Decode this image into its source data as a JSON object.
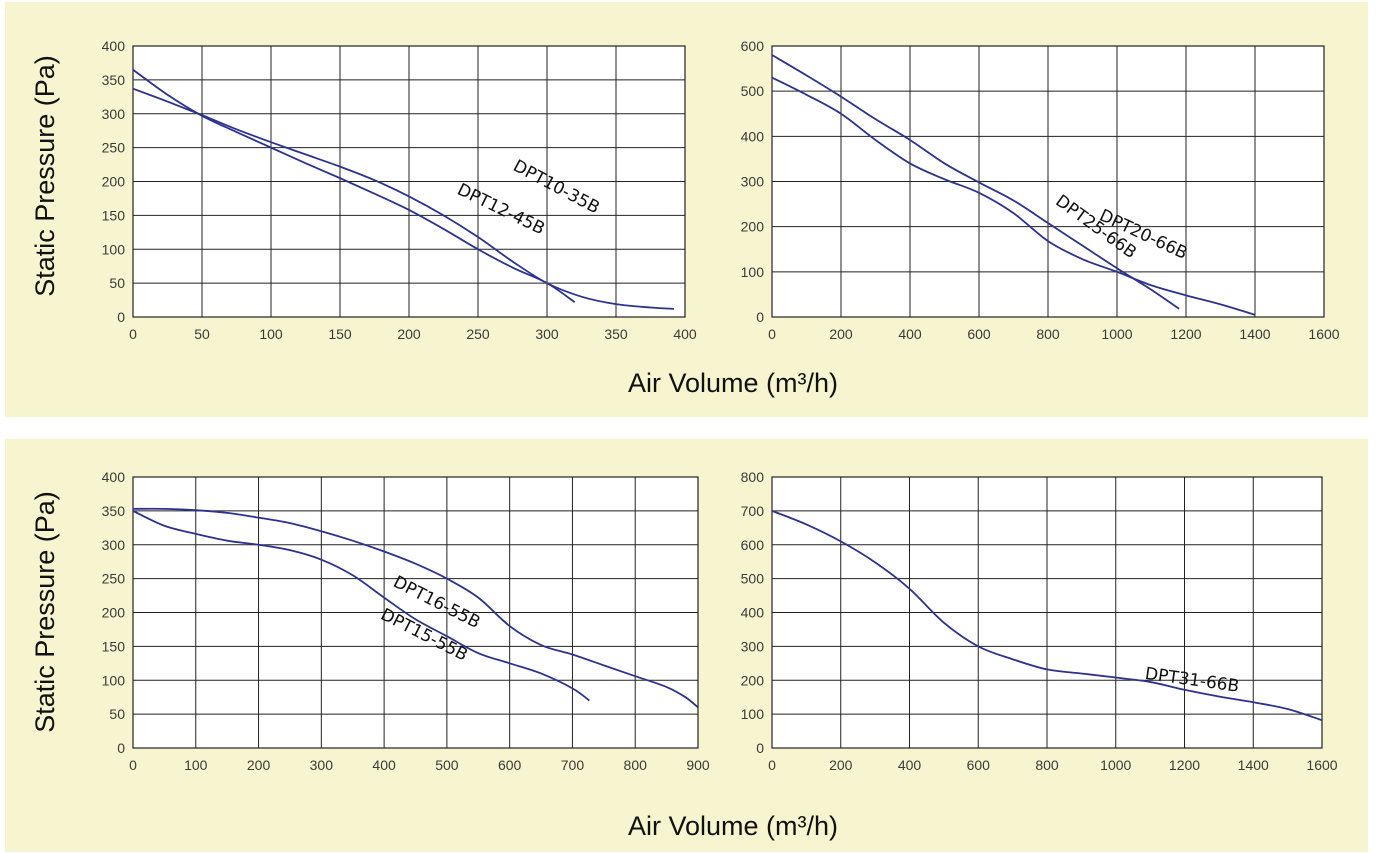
{
  "colors": {
    "background": "#f6f5cf",
    "plot_bg": "#ffffff",
    "grid": "#222222",
    "curve": "#2b3290"
  },
  "panels": [
    {
      "ylabel": "Static Pressure (Pa)",
      "xlabel": "Air Volume (m³/h)"
    },
    {
      "ylabel": "Static Pressure (Pa)",
      "xlabel": "Air Volume (m³/h)"
    }
  ],
  "chart_data": [
    {
      "type": "line",
      "xlim": [
        0,
        400
      ],
      "ylim": [
        0,
        400
      ],
      "xticks": [
        0,
        50,
        100,
        150,
        200,
        250,
        300,
        350,
        400
      ],
      "yticks": [
        0,
        50,
        100,
        150,
        200,
        250,
        300,
        350,
        400
      ],
      "grid": true,
      "series": [
        {
          "name": "DPT10-35B",
          "x": [
            0,
            25,
            50,
            75,
            100,
            125,
            150,
            175,
            200,
            225,
            250,
            275,
            300,
            325,
            350,
            375,
            392
          ],
          "y": [
            337,
            318,
            298,
            277,
            258,
            240,
            222,
            202,
            178,
            150,
            118,
            82,
            50,
            30,
            19,
            14,
            12
          ]
        },
        {
          "name": "DPT12-45B",
          "x": [
            0,
            25,
            50,
            75,
            100,
            125,
            150,
            175,
            200,
            225,
            250,
            275,
            300,
            320
          ],
          "y": [
            365,
            328,
            297,
            273,
            250,
            227,
            205,
            182,
            158,
            130,
            100,
            73,
            50,
            22
          ]
        }
      ]
    },
    {
      "type": "line",
      "xlim": [
        0,
        1600
      ],
      "ylim": [
        0,
        600
      ],
      "xticks": [
        0,
        200,
        400,
        600,
        800,
        1000,
        1200,
        1400,
        1600
      ],
      "yticks": [
        0,
        100,
        200,
        300,
        400,
        500,
        600
      ],
      "grid": true,
      "series": [
        {
          "name": "DPT20-66B",
          "x": [
            0,
            100,
            200,
            300,
            400,
            500,
            600,
            700,
            800,
            900,
            1000,
            1100,
            1200,
            1300,
            1400
          ],
          "y": [
            530,
            492,
            450,
            392,
            340,
            305,
            275,
            230,
            168,
            128,
            100,
            70,
            48,
            28,
            5
          ]
        },
        {
          "name": "DPT25-66B",
          "x": [
            0,
            100,
            200,
            300,
            400,
            500,
            600,
            700,
            800,
            900,
            1000,
            1100,
            1180
          ],
          "y": [
            580,
            535,
            488,
            438,
            392,
            340,
            298,
            258,
            208,
            158,
            108,
            60,
            18
          ]
        }
      ]
    },
    {
      "type": "line",
      "xlim": [
        0,
        900
      ],
      "ylim": [
        0,
        400
      ],
      "xticks": [
        0,
        100,
        200,
        300,
        400,
        500,
        600,
        700,
        800,
        900
      ],
      "yticks": [
        0,
        50,
        100,
        150,
        200,
        250,
        300,
        350,
        400
      ],
      "grid": true,
      "series": [
        {
          "name": "DPT16-55B",
          "x": [
            0,
            50,
            100,
            150,
            200,
            250,
            300,
            350,
            400,
            450,
            500,
            550,
            600,
            650,
            700,
            750,
            800,
            850,
            880,
            900
          ],
          "y": [
            353,
            353,
            351,
            347,
            340,
            332,
            320,
            306,
            290,
            272,
            250,
            222,
            180,
            152,
            138,
            122,
            106,
            90,
            75,
            60
          ]
        },
        {
          "name": "DPT15-55B",
          "x": [
            0,
            50,
            100,
            150,
            200,
            250,
            300,
            350,
            400,
            450,
            500,
            550,
            600,
            650,
            700,
            727
          ],
          "y": [
            350,
            328,
            316,
            306,
            300,
            292,
            278,
            255,
            222,
            190,
            165,
            140,
            125,
            110,
            88,
            70
          ]
        }
      ]
    },
    {
      "type": "line",
      "xlim": [
        0,
        1600
      ],
      "ylim": [
        0,
        800
      ],
      "xticks": [
        0,
        200,
        400,
        600,
        800,
        1000,
        1200,
        1400,
        1600
      ],
      "yticks": [
        0,
        100,
        200,
        300,
        400,
        500,
        600,
        700,
        800
      ],
      "grid": true,
      "series": [
        {
          "name": "DPT31-66B",
          "x": [
            0,
            100,
            200,
            300,
            400,
            500,
            600,
            700,
            800,
            900,
            1000,
            1100,
            1200,
            1300,
            1400,
            1500,
            1600
          ],
          "y": [
            700,
            660,
            610,
            548,
            470,
            370,
            300,
            262,
            232,
            220,
            208,
            195,
            172,
            152,
            135,
            115,
            82
          ]
        }
      ]
    }
  ]
}
